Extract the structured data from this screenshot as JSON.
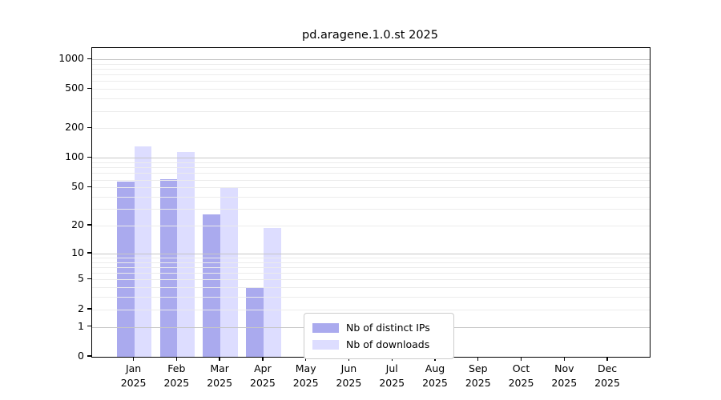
{
  "chart_data": {
    "type": "bar",
    "title": "pd.aragene.1.0.st 2025",
    "categories": [
      "Jan",
      "Feb",
      "Mar",
      "Apr",
      "May",
      "Jun",
      "Jul",
      "Aug",
      "Sep",
      "Oct",
      "Nov",
      "Dec"
    ],
    "year_label": "2025",
    "series": [
      {
        "name": "Nb of distinct IPs",
        "color": "#aaaaee",
        "values": [
          57,
          61,
          26,
          4,
          null,
          null,
          null,
          null,
          null,
          null,
          null,
          null
        ]
      },
      {
        "name": "Nb of downloads",
        "color": "#ddddff",
        "values": [
          130,
          115,
          50,
          19,
          null,
          null,
          null,
          null,
          null,
          null,
          null,
          null
        ]
      }
    ],
    "yscale": "log10(1+value)",
    "y_ticks": [
      "1000",
      "500",
      "200",
      "100",
      "50",
      "20",
      "10",
      "5",
      "2",
      "1",
      "0"
    ],
    "y_tick_values": [
      1000,
      500,
      200,
      100,
      50,
      20,
      10,
      5,
      2,
      1,
      0
    ],
    "ylim": [
      0,
      1290
    ],
    "grid": true,
    "grid_major_at": [
      1,
      10,
      100,
      1000
    ],
    "legend_position": "lower center"
  }
}
